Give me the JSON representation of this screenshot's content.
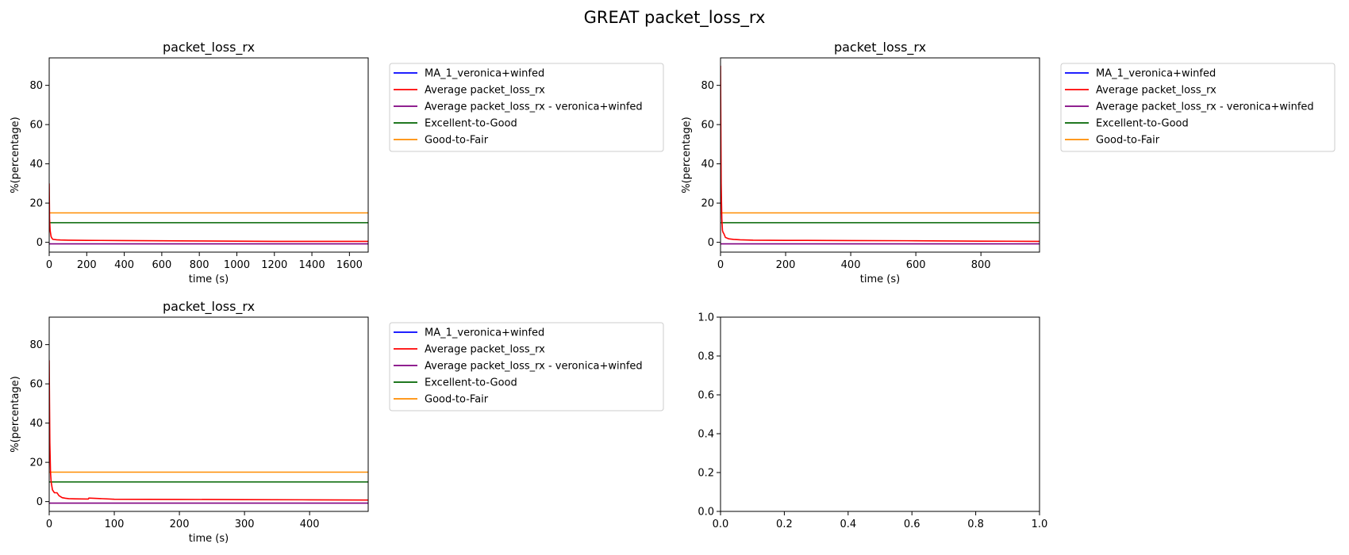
{
  "figure_title": "GREAT packet_loss_rx",
  "legend_entries": [
    {
      "label": "MA_1_veronica+winfed",
      "color": "#0000ff"
    },
    {
      "label": "Average packet_loss_rx",
      "color": "#ff0000"
    },
    {
      "label": "Average packet_loss_rx - veronica+winfed",
      "color": "#800080"
    },
    {
      "label": "Excellent-to-Good",
      "color": "#006400"
    },
    {
      "label": "Good-to-Fair",
      "color": "#ff8c00"
    }
  ],
  "chart_data": [
    {
      "type": "line",
      "title": "packet_loss_rx",
      "xlabel": "time (s)",
      "ylabel": "%(percentage)",
      "xlim": [
        0,
        1700
      ],
      "ylim": [
        -5,
        94
      ],
      "xticks": [
        0,
        200,
        400,
        600,
        800,
        1000,
        1200,
        1400,
        1600
      ],
      "yticks": [
        0,
        20,
        40,
        60,
        80
      ],
      "legend_placement": "outside-right",
      "grid": false,
      "series": [
        {
          "name": "MA_1_veronica+winfed",
          "color": "#0000ff",
          "x": [],
          "y": []
        },
        {
          "name": "Average packet_loss_rx",
          "color": "#ff0000",
          "x": [
            0,
            2,
            5,
            10,
            15,
            20,
            40,
            60,
            100,
            200,
            400,
            600,
            800,
            1000,
            1200,
            1400,
            1600,
            1700
          ],
          "y": [
            30,
            12,
            6,
            3,
            2,
            1.5,
            1.3,
            1.2,
            1.1,
            1.0,
            0.9,
            0.8,
            0.7,
            0.6,
            0.5,
            0.5,
            0.5,
            0.5
          ]
        },
        {
          "name": "Average packet_loss_rx - veronica+winfed",
          "color": "#800080",
          "x": [
            0,
            1700
          ],
          "y": [
            -0.8,
            -0.8
          ]
        },
        {
          "name": "Excellent-to-Good",
          "color": "#006400",
          "x": [
            0,
            1700
          ],
          "y": [
            10,
            10
          ]
        },
        {
          "name": "Good-to-Fair",
          "color": "#ff8c00",
          "x": [
            0,
            1700
          ],
          "y": [
            15,
            15
          ]
        }
      ]
    },
    {
      "type": "line",
      "title": "packet_loss_rx",
      "xlabel": "time (s)",
      "ylabel": "%(percentage)",
      "xlim": [
        0,
        980
      ],
      "ylim": [
        -5,
        94
      ],
      "xticks": [
        0,
        200,
        400,
        600,
        800
      ],
      "yticks": [
        0,
        20,
        40,
        60,
        80
      ],
      "legend_placement": "outside-right",
      "grid": false,
      "series": [
        {
          "name": "MA_1_veronica+winfed",
          "color": "#0000ff",
          "x": [],
          "y": []
        },
        {
          "name": "Average packet_loss_rx",
          "color": "#ff0000",
          "x": [
            0,
            1,
            2,
            4,
            6,
            8,
            10,
            15,
            25,
            40,
            60,
            100,
            200,
            400,
            600,
            800,
            980
          ],
          "y": [
            90,
            60,
            30,
            12,
            6,
            5,
            4.5,
            2.5,
            1.8,
            1.5,
            1.3,
            1.1,
            1.0,
            0.9,
            0.8,
            0.6,
            0.5
          ]
        },
        {
          "name": "Average packet_loss_rx - veronica+winfed",
          "color": "#800080",
          "x": [
            0,
            980
          ],
          "y": [
            -0.8,
            -0.8
          ]
        },
        {
          "name": "Excellent-to-Good",
          "color": "#006400",
          "x": [
            0,
            980
          ],
          "y": [
            10,
            10
          ]
        },
        {
          "name": "Good-to-Fair",
          "color": "#ff8c00",
          "x": [
            0,
            980
          ],
          "y": [
            15,
            15
          ]
        }
      ]
    },
    {
      "type": "line",
      "title": "packet_loss_rx",
      "xlabel": "time (s)",
      "ylabel": "%(percentage)",
      "xlim": [
        0,
        490
      ],
      "ylim": [
        -5,
        94
      ],
      "xticks": [
        0,
        100,
        200,
        300,
        400
      ],
      "yticks": [
        0,
        20,
        40,
        60,
        80
      ],
      "legend_placement": "outside-right",
      "grid": false,
      "series": [
        {
          "name": "MA_1_veronica+winfed",
          "color": "#0000ff",
          "x": [],
          "y": []
        },
        {
          "name": "Average packet_loss_rx",
          "color": "#ff0000",
          "x": [
            0,
            0.5,
            1,
            2,
            3,
            5,
            8,
            12,
            15,
            20,
            25,
            30,
            40,
            60,
            61,
            100,
            200,
            300,
            400,
            490
          ],
          "y": [
            72,
            50,
            30,
            15,
            10,
            6,
            4.5,
            4.5,
            3,
            2,
            1.7,
            1.5,
            1.4,
            1.3,
            1.8,
            1.2,
            1.1,
            1.0,
            0.9,
            0.8
          ]
        },
        {
          "name": "Average packet_loss_rx - veronica+winfed",
          "color": "#800080",
          "x": [
            0,
            490
          ],
          "y": [
            -0.8,
            -0.8
          ]
        },
        {
          "name": "Excellent-to-Good",
          "color": "#006400",
          "x": [
            0,
            490
          ],
          "y": [
            10,
            10
          ]
        },
        {
          "name": "Good-to-Fair",
          "color": "#ff8c00",
          "x": [
            0,
            490
          ],
          "y": [
            15,
            15
          ]
        }
      ]
    },
    {
      "type": "line",
      "title": "",
      "xlabel": "",
      "ylabel": "",
      "xlim": [
        0,
        1
      ],
      "ylim": [
        0,
        1
      ],
      "xticks": [
        0.0,
        0.2,
        0.4,
        0.6,
        0.8,
        1.0
      ],
      "yticks": [
        0.0,
        0.2,
        0.4,
        0.6,
        0.8,
        1.0
      ],
      "legend_placement": "none",
      "grid": false,
      "series": []
    }
  ]
}
